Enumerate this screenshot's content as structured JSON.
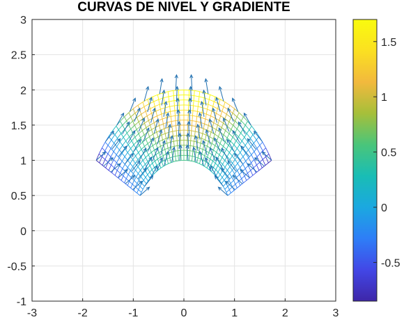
{
  "chart_data": {
    "type": "contour_quiver",
    "title": "CURVAS DE NIVEL Y GRADIENTE",
    "xlim": [
      -3,
      3
    ],
    "ylim": [
      -1,
      3
    ],
    "xticks": [
      "-3",
      "-2",
      "-1",
      "0",
      "1",
      "2",
      "3"
    ],
    "yticks": [
      "-1",
      "-0.5",
      "0",
      "0.5",
      "1",
      "1.5",
      "2",
      "2.5",
      "3"
    ],
    "grid": true,
    "domain": {
      "r_min": 1.0,
      "r_max": 2.0,
      "theta_min_deg": 30,
      "theta_max_deg": 150
    },
    "colorbar": {
      "min": -0.85,
      "max": 1.7,
      "ticks": [
        "-0.5",
        "0",
        "0.5",
        "1",
        "1.5"
      ],
      "tick_values": [
        -0.5,
        0,
        0.5,
        1,
        1.5
      ],
      "colormap": "parula",
      "stops": [
        "#3e26a8",
        "#4247e6",
        "#2e7ef7",
        "#1ba8e0",
        "#19bdb5",
        "#4ac57a",
        "#a6bf3a",
        "#f2b93d",
        "#fbe021",
        "#f9fb0e"
      ]
    },
    "arrow_color": "#1f6fb0",
    "contour_color_high": "#e6c830"
  }
}
